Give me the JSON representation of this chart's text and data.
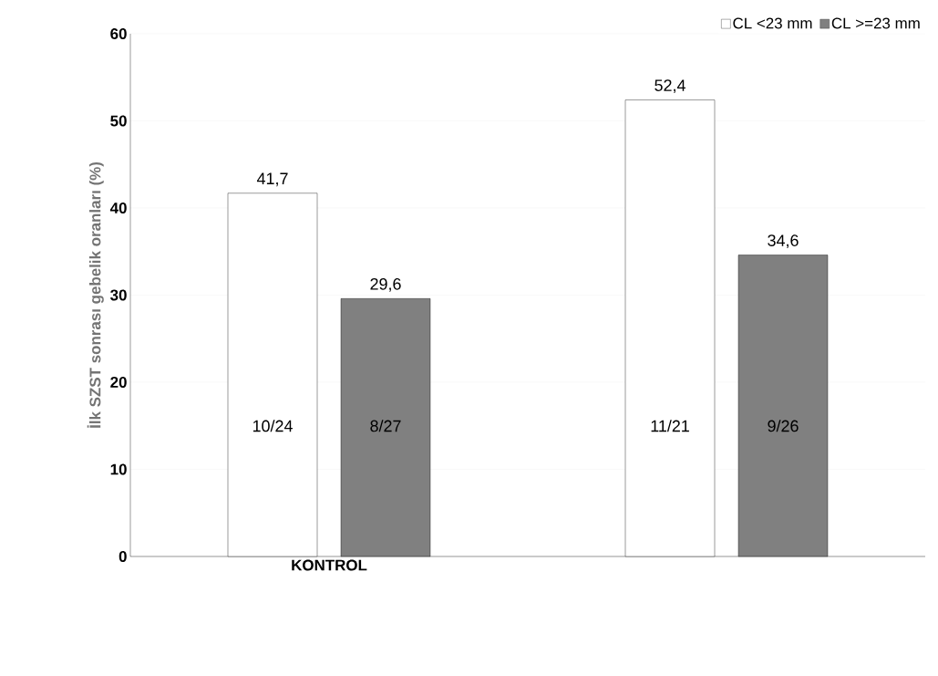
{
  "chart_data": {
    "type": "bar",
    "ylabel": "İlk SZST sonrası gebelik oranları (%)",
    "categories": [
      "KONTROL",
      null
    ],
    "series": [
      {
        "name": "CL <23 mm",
        "color": "#ffffff",
        "values": [
          41.7,
          52.4
        ],
        "value_labels": [
          "41,7",
          "52,4"
        ]
      },
      {
        "name": "CL >=23 mm",
        "color": "#808080",
        "values": [
          29.6,
          34.6
        ],
        "value_labels": [
          "29,6",
          "34,6"
        ]
      }
    ],
    "ylim": [
      0,
      60
    ],
    "yticks": [
      0,
      10,
      20,
      30,
      40,
      50,
      60
    ],
    "grid": "y",
    "legend": "top right",
    "annotations": [
      "10/24",
      "8/27",
      "11/21",
      "9/26"
    ]
  }
}
